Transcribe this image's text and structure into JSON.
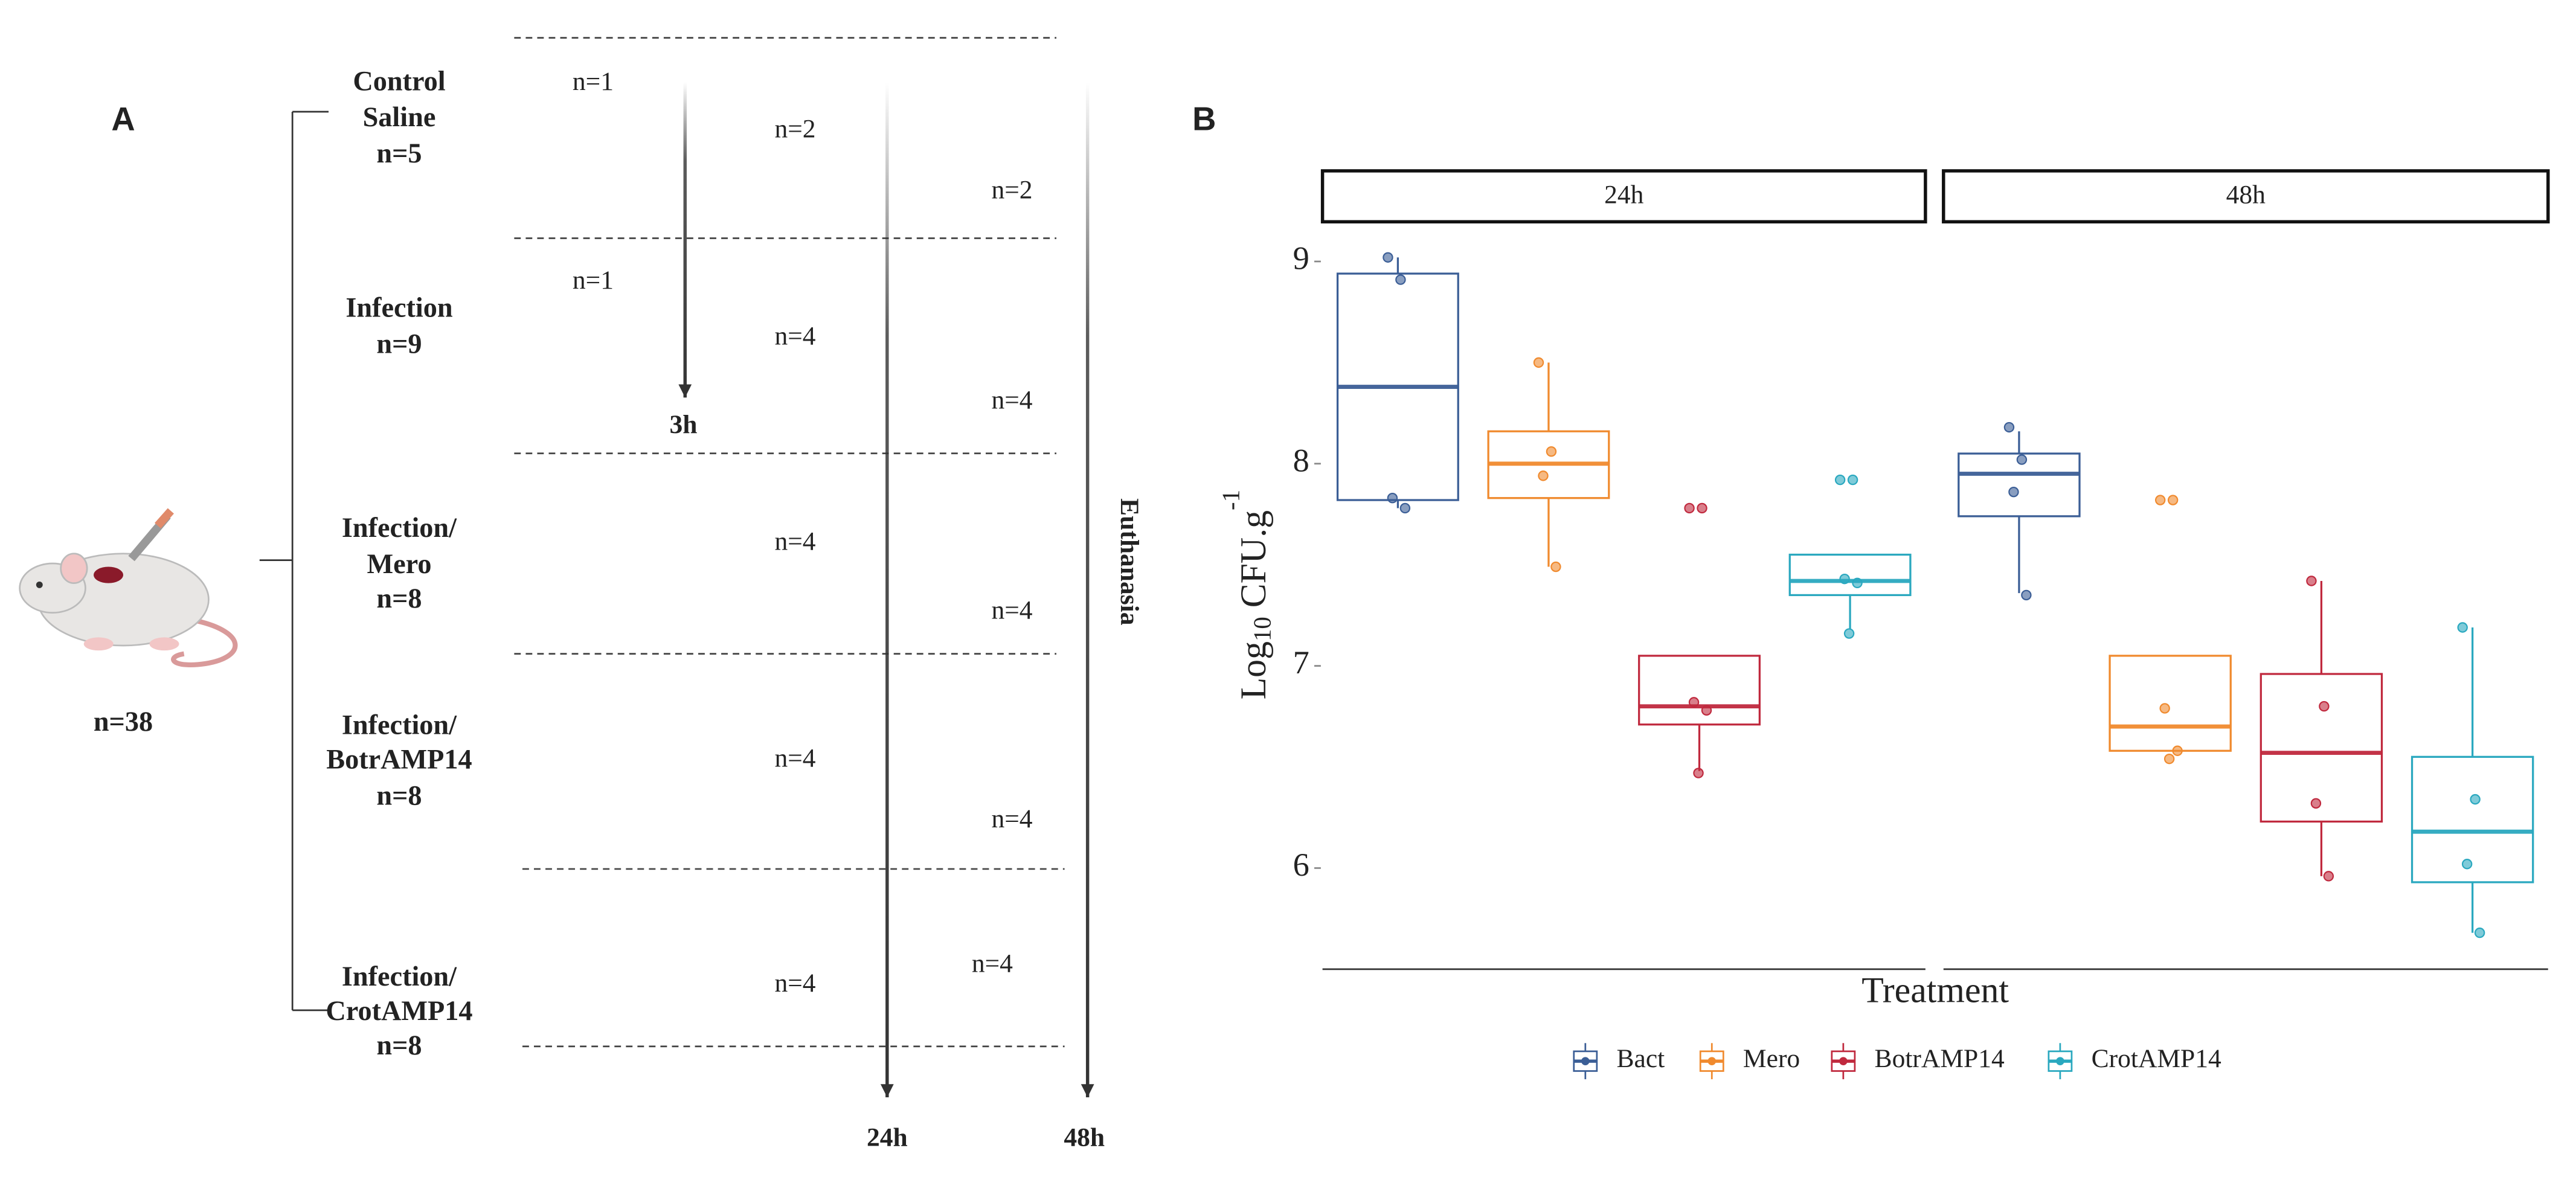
{
  "panel_a": {
    "label": "A",
    "total": "n=38",
    "euthanasia": "Euthanasia",
    "timepoints": [
      "3h",
      "24h",
      "48h"
    ],
    "groups": [
      {
        "lines": [
          "Control",
          "Saline",
          "n=5"
        ],
        "counts": [
          "n=1",
          "n=2",
          "n=2"
        ]
      },
      {
        "lines": [
          "Infection",
          "n=9"
        ],
        "counts": [
          "n=1",
          "n=4",
          "n=4"
        ]
      },
      {
        "lines": [
          "Infection/",
          "Mero",
          "n=8"
        ],
        "counts": [
          "n=4",
          "n=4"
        ]
      },
      {
        "lines": [
          "Infection/",
          "BotrAMP14",
          "n=8"
        ],
        "counts": [
          "n=4",
          "n=4"
        ]
      },
      {
        "lines": [
          "Infection/",
          "CrotAMP14",
          "n=8"
        ],
        "counts": [
          "n=4",
          "n=4"
        ]
      }
    ]
  },
  "chart_data": {
    "type": "box",
    "panel_label": "B",
    "ylabel": [
      "Log",
      "10",
      " CFU.g",
      "-1"
    ],
    "xlabel": "Treatment",
    "ylim": [
      5.5,
      9.18
    ],
    "yticks": [
      6,
      7,
      8,
      9
    ],
    "grid": false,
    "legend": "bottom",
    "series": [
      {
        "name": "Bact",
        "color": "#3b5e96"
      },
      {
        "name": "Mero",
        "color": "#f08a2e"
      },
      {
        "name": "BotrAMP14",
        "color": "#c0293e"
      },
      {
        "name": "CrotAMP14",
        "color": "#2aa8bf"
      }
    ],
    "facets": [
      {
        "name": "24h",
        "boxes": [
          {
            "whisker_low": 7.78,
            "q1": 7.82,
            "median": 8.38,
            "q3": 8.94,
            "whisker_high": 9.02,
            "points": [
              9.02,
              8.91,
              7.83,
              7.78
            ]
          },
          {
            "whisker_low": 7.49,
            "q1": 7.83,
            "median": 8.0,
            "q3": 8.16,
            "whisker_high": 8.5,
            "points": [
              8.5,
              8.06,
              7.94,
              7.49
            ]
          },
          {
            "whisker_low": 6.48,
            "q1": 6.71,
            "median": 6.8,
            "q3": 7.05,
            "whisker_high": 7.05,
            "points": [
              7.78,
              7.78,
              6.82,
              6.78,
              6.47
            ]
          },
          {
            "whisker_low": 7.18,
            "q1": 7.35,
            "median": 7.42,
            "q3": 7.55,
            "whisker_high": 7.55,
            "points": [
              7.92,
              7.92,
              7.43,
              7.41,
              7.16
            ]
          }
        ]
      },
      {
        "name": "48h",
        "boxes": [
          {
            "whisker_low": 7.36,
            "q1": 7.74,
            "median": 7.95,
            "q3": 8.05,
            "whisker_high": 8.16,
            "points": [
              8.18,
              8.02,
              7.86,
              7.35
            ]
          },
          {
            "whisker_low": 6.58,
            "q1": 6.58,
            "median": 6.7,
            "q3": 7.05,
            "whisker_high": 7.05,
            "points": [
              7.82,
              7.82,
              6.79,
              6.58,
              6.54
            ]
          },
          {
            "whisker_low": 5.96,
            "q1": 6.23,
            "median": 6.57,
            "q3": 6.96,
            "whisker_high": 7.42,
            "points": [
              7.42,
              6.8,
              6.32,
              5.96
            ]
          },
          {
            "whisker_low": 5.68,
            "q1": 5.93,
            "median": 6.18,
            "q3": 6.55,
            "whisker_high": 7.19,
            "points": [
              7.19,
              6.34,
              6.02,
              5.68
            ]
          }
        ]
      }
    ]
  }
}
